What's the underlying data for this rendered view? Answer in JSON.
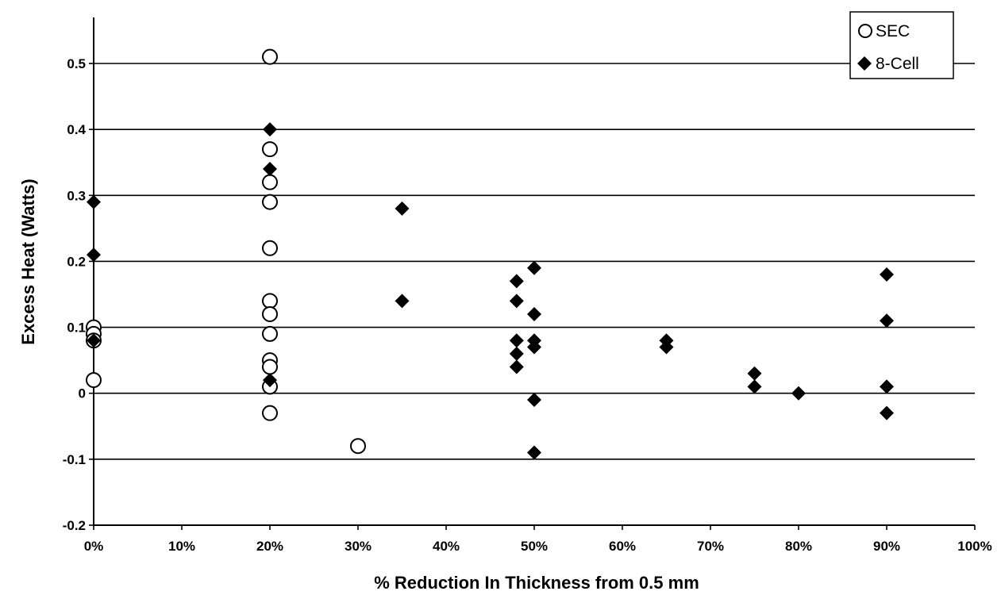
{
  "chart_data": {
    "type": "scatter",
    "title": "",
    "xlabel": "% Reduction In Thickness from 0.5 mm",
    "ylabel": "Excess Heat (Watts)",
    "xlim": [
      0,
      100
    ],
    "ylim": [
      -0.2,
      0.5
    ],
    "x_ticks": [
      0,
      10,
      20,
      30,
      40,
      50,
      60,
      70,
      80,
      90,
      100
    ],
    "x_tick_labels": [
      "0%",
      "10%",
      "20%",
      "30%",
      "40%",
      "50%",
      "60%",
      "70%",
      "80%",
      "90%",
      "100%"
    ],
    "y_ticks": [
      -0.2,
      -0.1,
      0,
      0.1,
      0.2,
      0.3,
      0.4,
      0.5
    ],
    "y_tick_labels": [
      "-0.2",
      "-0.1",
      "0",
      "0.1",
      "0.2",
      "0.3",
      "0.4",
      "0.5"
    ],
    "grid": "horizontal",
    "legend_position": "top-right",
    "series": [
      {
        "name": "SEC",
        "marker": "open-circle",
        "color": "#000000",
        "points": [
          {
            "x": 0,
            "y": 0.1
          },
          {
            "x": 0,
            "y": 0.09
          },
          {
            "x": 0,
            "y": 0.08
          },
          {
            "x": 0,
            "y": 0.02
          },
          {
            "x": 20,
            "y": 0.51
          },
          {
            "x": 20,
            "y": 0.37
          },
          {
            "x": 20,
            "y": 0.32
          },
          {
            "x": 20,
            "y": 0.29
          },
          {
            "x": 20,
            "y": 0.22
          },
          {
            "x": 20,
            "y": 0.14
          },
          {
            "x": 20,
            "y": 0.12
          },
          {
            "x": 20,
            "y": 0.09
          },
          {
            "x": 20,
            "y": 0.05
          },
          {
            "x": 20,
            "y": 0.04
          },
          {
            "x": 20,
            "y": 0.01
          },
          {
            "x": 20,
            "y": -0.03
          },
          {
            "x": 30,
            "y": -0.08
          }
        ]
      },
      {
        "name": "8-Cell",
        "marker": "filled-diamond",
        "color": "#000000",
        "points": [
          {
            "x": 0,
            "y": 0.29
          },
          {
            "x": 0,
            "y": 0.21
          },
          {
            "x": 0,
            "y": 0.08
          },
          {
            "x": 20,
            "y": 0.4
          },
          {
            "x": 20,
            "y": 0.34
          },
          {
            "x": 20,
            "y": 0.02
          },
          {
            "x": 35,
            "y": 0.28
          },
          {
            "x": 35,
            "y": 0.14
          },
          {
            "x": 48,
            "y": 0.17
          },
          {
            "x": 48,
            "y": 0.14
          },
          {
            "x": 48,
            "y": 0.08
          },
          {
            "x": 48,
            "y": 0.06
          },
          {
            "x": 48,
            "y": 0.04
          },
          {
            "x": 50,
            "y": 0.19
          },
          {
            "x": 50,
            "y": 0.12
          },
          {
            "x": 50,
            "y": 0.08
          },
          {
            "x": 50,
            "y": 0.07
          },
          {
            "x": 50,
            "y": -0.01
          },
          {
            "x": 50,
            "y": -0.09
          },
          {
            "x": 65,
            "y": 0.08
          },
          {
            "x": 65,
            "y": 0.07
          },
          {
            "x": 75,
            "y": 0.03
          },
          {
            "x": 75,
            "y": 0.01
          },
          {
            "x": 80,
            "y": 0.0
          },
          {
            "x": 90,
            "y": 0.18
          },
          {
            "x": 90,
            "y": 0.11
          },
          {
            "x": 90,
            "y": 0.01
          },
          {
            "x": 90,
            "y": -0.03
          }
        ]
      }
    ]
  }
}
